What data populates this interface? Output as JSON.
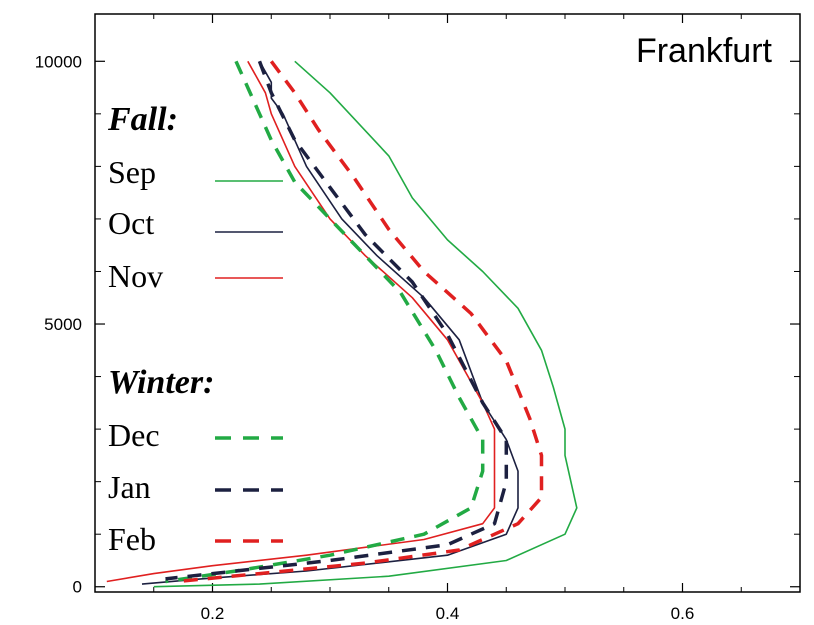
{
  "chart_data": {
    "type": "line",
    "title": "Frankfurt",
    "xlabel": "",
    "ylabel": "",
    "xlim": [
      0.1,
      0.7
    ],
    "ylim": [
      -100,
      10900
    ],
    "x_ticks": [
      0.2,
      0.4,
      0.6
    ],
    "x_tick_labels": [
      "0.2",
      "0.4",
      "0.6"
    ],
    "y_ticks": [
      0,
      5000,
      10000
    ],
    "y_tick_labels": [
      "0",
      "5000",
      "10000"
    ],
    "grid": false,
    "legend_position": "left",
    "legend_groups": [
      {
        "heading": "Fall:",
        "entries": [
          "Sep",
          "Oct",
          "Nov"
        ]
      },
      {
        "heading": "Winter:",
        "entries": [
          "Dec",
          "Jan",
          "Feb"
        ]
      }
    ],
    "series": [
      {
        "name": "Sep",
        "color": "#22aa44",
        "dash": "solid",
        "points": [
          [
            0.27,
            10000
          ],
          [
            0.3,
            9400
          ],
          [
            0.35,
            8200
          ],
          [
            0.37,
            7400
          ],
          [
            0.4,
            6600
          ],
          [
            0.43,
            6000
          ],
          [
            0.46,
            5300
          ],
          [
            0.48,
            4500
          ],
          [
            0.49,
            3800
          ],
          [
            0.5,
            3000
          ],
          [
            0.5,
            2500
          ],
          [
            0.51,
            1500
          ],
          [
            0.5,
            1000
          ],
          [
            0.45,
            500
          ],
          [
            0.35,
            200
          ],
          [
            0.24,
            50
          ],
          [
            0.15,
            0
          ]
        ]
      },
      {
        "name": "Oct",
        "color": "#1c2040",
        "dash": "solid",
        "points": [
          [
            0.24,
            10000
          ],
          [
            0.25,
            9600
          ],
          [
            0.25,
            9300
          ],
          [
            0.26,
            9000
          ],
          [
            0.28,
            8000
          ],
          [
            0.31,
            7000
          ],
          [
            0.34,
            6300
          ],
          [
            0.38,
            5500
          ],
          [
            0.41,
            4700
          ],
          [
            0.43,
            3500
          ],
          [
            0.45,
            2800
          ],
          [
            0.46,
            2200
          ],
          [
            0.46,
            1500
          ],
          [
            0.45,
            1000
          ],
          [
            0.4,
            600
          ],
          [
            0.28,
            300
          ],
          [
            0.19,
            150
          ],
          [
            0.14,
            50
          ]
        ]
      },
      {
        "name": "Nov",
        "color": "#e02020",
        "dash": "solid",
        "points": [
          [
            0.23,
            10000
          ],
          [
            0.245,
            9400
          ],
          [
            0.25,
            9000
          ],
          [
            0.27,
            8000
          ],
          [
            0.3,
            7000
          ],
          [
            0.33,
            6300
          ],
          [
            0.37,
            5500
          ],
          [
            0.4,
            4700
          ],
          [
            0.43,
            3500
          ],
          [
            0.44,
            3000
          ],
          [
            0.44,
            2200
          ],
          [
            0.44,
            1500
          ],
          [
            0.43,
            1200
          ],
          [
            0.38,
            900
          ],
          [
            0.28,
            600
          ],
          [
            0.2,
            400
          ],
          [
            0.15,
            250
          ],
          [
            0.11,
            100
          ]
        ]
      },
      {
        "name": "Dec",
        "color": "#22aa44",
        "dash": "dashed",
        "points": [
          [
            0.22,
            10000
          ],
          [
            0.23,
            9500
          ],
          [
            0.24,
            9000
          ],
          [
            0.25,
            8500
          ],
          [
            0.27,
            7700
          ],
          [
            0.3,
            7000
          ],
          [
            0.33,
            6300
          ],
          [
            0.36,
            5600
          ],
          [
            0.39,
            4500
          ],
          [
            0.41,
            3600
          ],
          [
            0.43,
            2800
          ],
          [
            0.43,
            2200
          ],
          [
            0.42,
            1500
          ],
          [
            0.38,
            1000
          ],
          [
            0.3,
            600
          ],
          [
            0.22,
            300
          ],
          [
            0.16,
            100
          ]
        ]
      },
      {
        "name": "Jan",
        "color": "#1c2040",
        "dash": "dashed",
        "points": [
          [
            0.24,
            10000
          ],
          [
            0.25,
            9400
          ],
          [
            0.27,
            8500
          ],
          [
            0.3,
            7600
          ],
          [
            0.33,
            6700
          ],
          [
            0.37,
            5800
          ],
          [
            0.4,
            4800
          ],
          [
            0.43,
            3500
          ],
          [
            0.45,
            2800
          ],
          [
            0.45,
            2000
          ],
          [
            0.44,
            1200
          ],
          [
            0.4,
            800
          ],
          [
            0.3,
            500
          ],
          [
            0.22,
            300
          ],
          [
            0.16,
            150
          ]
        ]
      },
      {
        "name": "Feb",
        "color": "#e02020",
        "dash": "dashed",
        "points": [
          [
            0.25,
            10000
          ],
          [
            0.27,
            9400
          ],
          [
            0.29,
            8700
          ],
          [
            0.32,
            7800
          ],
          [
            0.35,
            6800
          ],
          [
            0.38,
            6000
          ],
          [
            0.42,
            5200
          ],
          [
            0.45,
            4300
          ],
          [
            0.47,
            3200
          ],
          [
            0.48,
            2500
          ],
          [
            0.48,
            1700
          ],
          [
            0.46,
            1200
          ],
          [
            0.41,
            700
          ],
          [
            0.33,
            450
          ],
          [
            0.24,
            250
          ],
          [
            0.17,
            100
          ]
        ]
      }
    ]
  }
}
